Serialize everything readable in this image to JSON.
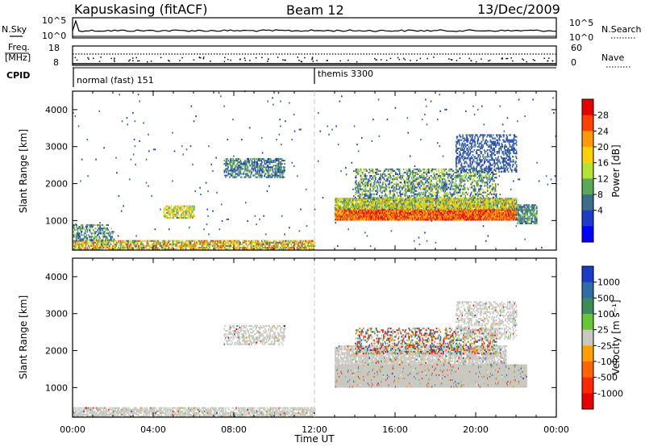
{
  "header": {
    "station": "Kapuskasing (fitACF)",
    "beam": "Beam 12",
    "date": "13/Dec/2009"
  },
  "noise_panel": {
    "left_label": "N.Sky",
    "right_label": "N.Search",
    "left_ticks": [
      "10^5",
      "10^0"
    ],
    "right_ticks": [
      "10^5",
      "10^0"
    ]
  },
  "freq_panel": {
    "left_label_1": "Freq.",
    "left_label_2": "[MHz]",
    "left_ticks": [
      "18",
      "8"
    ],
    "right_label": "Nave",
    "right_ticks": [
      "60",
      "0"
    ]
  },
  "cpid": {
    "label": "CPID",
    "mode_1": "normal (fast) 151",
    "mode_2": "themis 3300"
  },
  "power_scale": {
    "title": "Power [dB]",
    "ticks": [
      "28",
      "24",
      "20",
      "16",
      "12",
      "8",
      "4"
    ],
    "colors": [
      "#e80000",
      "#ff4000",
      "#ff9a00",
      "#ffd000",
      "#b4e432",
      "#5aa85a",
      "#3c6e8c",
      "#1e3cc8",
      "#0000ff"
    ]
  },
  "velocity_scale": {
    "title": "Velocity [m s⁻¹]",
    "ticks": [
      "1000",
      "500",
      "100",
      "25",
      "-25",
      "-100",
      "-500",
      "-1000"
    ],
    "colors": [
      "#1a3cc8",
      "#2e6ea8",
      "#3c8c5a",
      "#64c832",
      "#c8c8c0",
      "#ffa000",
      "#ff6400",
      "#ff2800",
      "#e80000"
    ]
  },
  "chart_data": [
    {
      "type": "heatmap",
      "title": "Power",
      "ylabel": "Slant Range [km]",
      "xlabel": "Time UT",
      "ylim": [
        200,
        4500
      ],
      "y_ticks": [
        "1000",
        "2000",
        "3000",
        "4000"
      ],
      "x_ticks": [
        "00:00",
        "04:00",
        "08:00",
        "12:00",
        "16:00",
        "20:00",
        "00:00"
      ],
      "zlim": [
        0,
        30
      ],
      "regions": [
        {
          "t0": 0.0,
          "t1": 12.0,
          "r0": 200,
          "r1": 450,
          "z0": 8,
          "z1": 26,
          "density": 0.55
        },
        {
          "t0": 0.0,
          "t1": 2.0,
          "r0": 450,
          "r1": 900,
          "z0": 4,
          "z1": 16,
          "density": 0.35
        },
        {
          "t0": 4.5,
          "t1": 6.0,
          "r0": 1050,
          "r1": 1400,
          "z0": 10,
          "z1": 22,
          "density": 0.5
        },
        {
          "t0": 7.5,
          "t1": 10.5,
          "r0": 2150,
          "r1": 2650,
          "z0": 4,
          "z1": 14,
          "density": 0.45
        },
        {
          "t0": 13.0,
          "t1": 22.0,
          "r0": 1000,
          "r1": 1300,
          "z0": 18,
          "z1": 30,
          "density": 0.95
        },
        {
          "t0": 13.0,
          "t1": 22.0,
          "r0": 1300,
          "r1": 1600,
          "z0": 8,
          "z1": 22,
          "density": 0.75
        },
        {
          "t0": 14.0,
          "t1": 21.0,
          "r0": 1600,
          "r1": 2400,
          "z0": 4,
          "z1": 18,
          "density": 0.35
        },
        {
          "t0": 19.0,
          "t1": 22.0,
          "r0": 2300,
          "r1": 3300,
          "z0": 4,
          "z1": 10,
          "density": 0.3
        },
        {
          "t0": 22.0,
          "t1": 23.0,
          "r0": 900,
          "r1": 1400,
          "z0": 6,
          "z1": 14,
          "density": 0.6
        },
        {
          "t0": 0.0,
          "t1": 24.0,
          "r0": 200,
          "r1": 4500,
          "z0": 4,
          "z1": 10,
          "density": 0.004
        }
      ]
    },
    {
      "type": "heatmap",
      "title": "Velocity",
      "ylabel": "Slant Range [km]",
      "xlabel": "Time UT",
      "ylim": [
        200,
        4500
      ],
      "y_ticks": [
        "1000",
        "2000",
        "3000",
        "4000"
      ],
      "x_ticks": [
        "00:00",
        "04:00",
        "08:00",
        "12:00",
        "16:00",
        "20:00",
        "00:00"
      ],
      "zlim": [
        -1000,
        1000
      ],
      "regions": [
        {
          "t0": 0.0,
          "t1": 12.0,
          "r0": 200,
          "r1": 450,
          "v": "gs",
          "density": 0.55
        },
        {
          "t0": 13.0,
          "t1": 22.5,
          "r0": 1000,
          "r1": 1600,
          "v": "gs",
          "density": 0.95
        },
        {
          "t0": 13.0,
          "t1": 21.5,
          "r0": 1600,
          "r1": 2100,
          "v": "gs",
          "density": 0.6
        },
        {
          "t0": 14.0,
          "t1": 21.0,
          "r0": 1900,
          "r1": 2600,
          "v": "mixed",
          "density": 0.25
        },
        {
          "t0": 7.5,
          "t1": 10.5,
          "r0": 2150,
          "r1": 2650,
          "v": "gs",
          "density": 0.35
        },
        {
          "t0": 19.0,
          "t1": 22.0,
          "r0": 2300,
          "r1": 3300,
          "v": "gs",
          "density": 0.3
        }
      ]
    }
  ]
}
